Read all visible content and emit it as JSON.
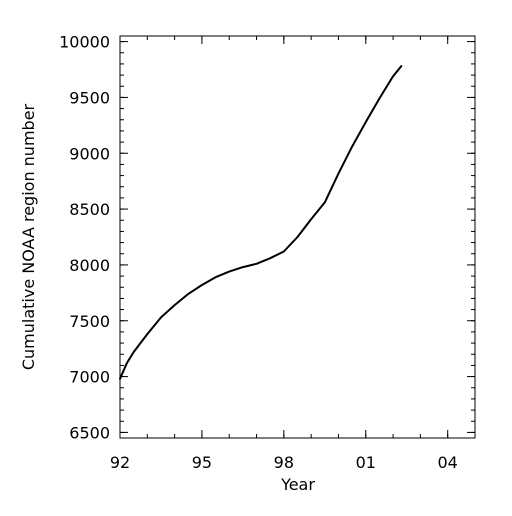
{
  "chart_data": {
    "type": "line",
    "xlabel": "Year",
    "ylabel": "Cumulative NOAA region number",
    "xlim": [
      1992,
      2005
    ],
    "ylim": [
      6450,
      10050
    ],
    "x_ticks": [
      {
        "value": 1992,
        "label": "92"
      },
      {
        "value": 1995,
        "label": "95"
      },
      {
        "value": 1998,
        "label": "98"
      },
      {
        "value": 2001,
        "label": "01"
      },
      {
        "value": 2004,
        "label": "04"
      }
    ],
    "y_ticks": [
      {
        "value": 6500,
        "label": "6500"
      },
      {
        "value": 7000,
        "label": "7000"
      },
      {
        "value": 7500,
        "label": "7500"
      },
      {
        "value": 8000,
        "label": "8000"
      },
      {
        "value": 8500,
        "label": "8500"
      },
      {
        "value": 9000,
        "label": "9000"
      },
      {
        "value": 9500,
        "label": "9500"
      },
      {
        "value": 10000,
        "label": "10000"
      }
    ],
    "grid": false,
    "series": [
      {
        "x": [
          1992.0,
          1992.25,
          1992.5,
          1993.0,
          1993.5,
          1994.0,
          1994.5,
          1995.0,
          1995.5,
          1996.0,
          1996.5,
          1997.0,
          1997.5,
          1998.0,
          1998.5,
          1999.0,
          1999.5,
          2000.0,
          2000.5,
          2001.0,
          2001.5,
          2002.0,
          2002.3
        ],
        "y": [
          6980,
          7120,
          7220,
          7380,
          7530,
          7640,
          7740,
          7820,
          7890,
          7940,
          7980,
          8010,
          8060,
          8120,
          8250,
          8410,
          8560,
          8820,
          9060,
          9280,
          9490,
          9690,
          9780
        ]
      }
    ]
  }
}
